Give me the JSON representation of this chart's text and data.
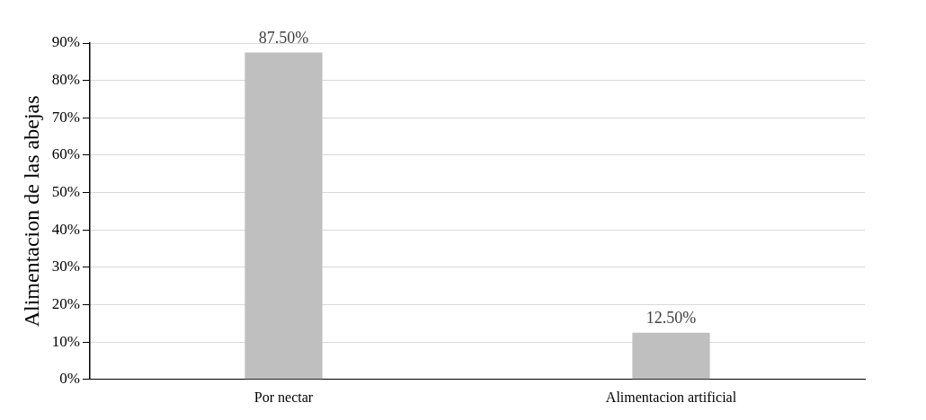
{
  "chart_data": {
    "type": "bar",
    "ylabel": "Alimentacion de las abejas",
    "categories": [
      "Por nectar",
      "Alimentacion artificial"
    ],
    "values": [
      87.5,
      12.5
    ],
    "color": "#bfbfbf",
    "value_labels": [
      "87.50%",
      "12.50%"
    ],
    "ylim": [
      0,
      90
    ],
    "yticks": [
      {
        "value": 0,
        "label": "0%"
      },
      {
        "value": 10,
        "label": "10%"
      },
      {
        "value": 20,
        "label": "20%"
      },
      {
        "value": 30,
        "label": "30%"
      },
      {
        "value": 40,
        "label": "40%"
      },
      {
        "value": 50,
        "label": "50%"
      },
      {
        "value": 60,
        "label": "60%"
      },
      {
        "value": 70,
        "label": "70%"
      },
      {
        "value": 80,
        "label": "80%"
      },
      {
        "value": 90,
        "label": "90%"
      }
    ],
    "grid": "y",
    "legend": false
  }
}
